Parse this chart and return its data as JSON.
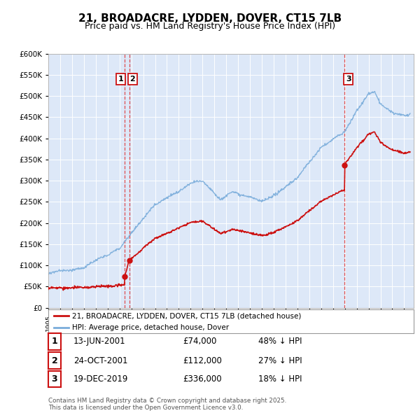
{
  "title": "21, BROADACRE, LYDDEN, DOVER, CT15 7LB",
  "subtitle": "Price paid vs. HM Land Registry's House Price Index (HPI)",
  "ylim": [
    0,
    600000
  ],
  "yticks": [
    0,
    50000,
    100000,
    150000,
    200000,
    250000,
    300000,
    350000,
    400000,
    450000,
    500000,
    550000,
    600000
  ],
  "ytick_labels": [
    "£0",
    "£50K",
    "£100K",
    "£150K",
    "£200K",
    "£250K",
    "£300K",
    "£350K",
    "£400K",
    "£450K",
    "£500K",
    "£550K",
    "£600K"
  ],
  "background_color": "#dde8f8",
  "plot_bg_color": "#dde8f8",
  "hpi_color": "#7aaddb",
  "price_color": "#cc1111",
  "vline_color": "#dd3333",
  "legend_house": "21, BROADACRE, LYDDEN, DOVER, CT15 7LB (detached house)",
  "legend_hpi": "HPI: Average price, detached house, Dover",
  "table_rows": [
    {
      "num": "1",
      "date": "13-JUN-2001",
      "price": "£74,000",
      "hpi": "48% ↓ HPI"
    },
    {
      "num": "2",
      "date": "24-OCT-2001",
      "price": "£112,000",
      "hpi": "27% ↓ HPI"
    },
    {
      "num": "3",
      "date": "19-DEC-2019",
      "price": "£336,000",
      "hpi": "18% ↓ HPI"
    }
  ],
  "footnote": "Contains HM Land Registry data © Crown copyright and database right 2025.\nThis data is licensed under the Open Government Licence v3.0.",
  "sale1_year": 2001.45,
  "sale1_price": 74000,
  "sale2_year": 2001.82,
  "sale2_price": 112000,
  "sale3_year": 2019.97,
  "sale3_price": 336000,
  "xmin": 1995.0,
  "xmax": 2025.8
}
